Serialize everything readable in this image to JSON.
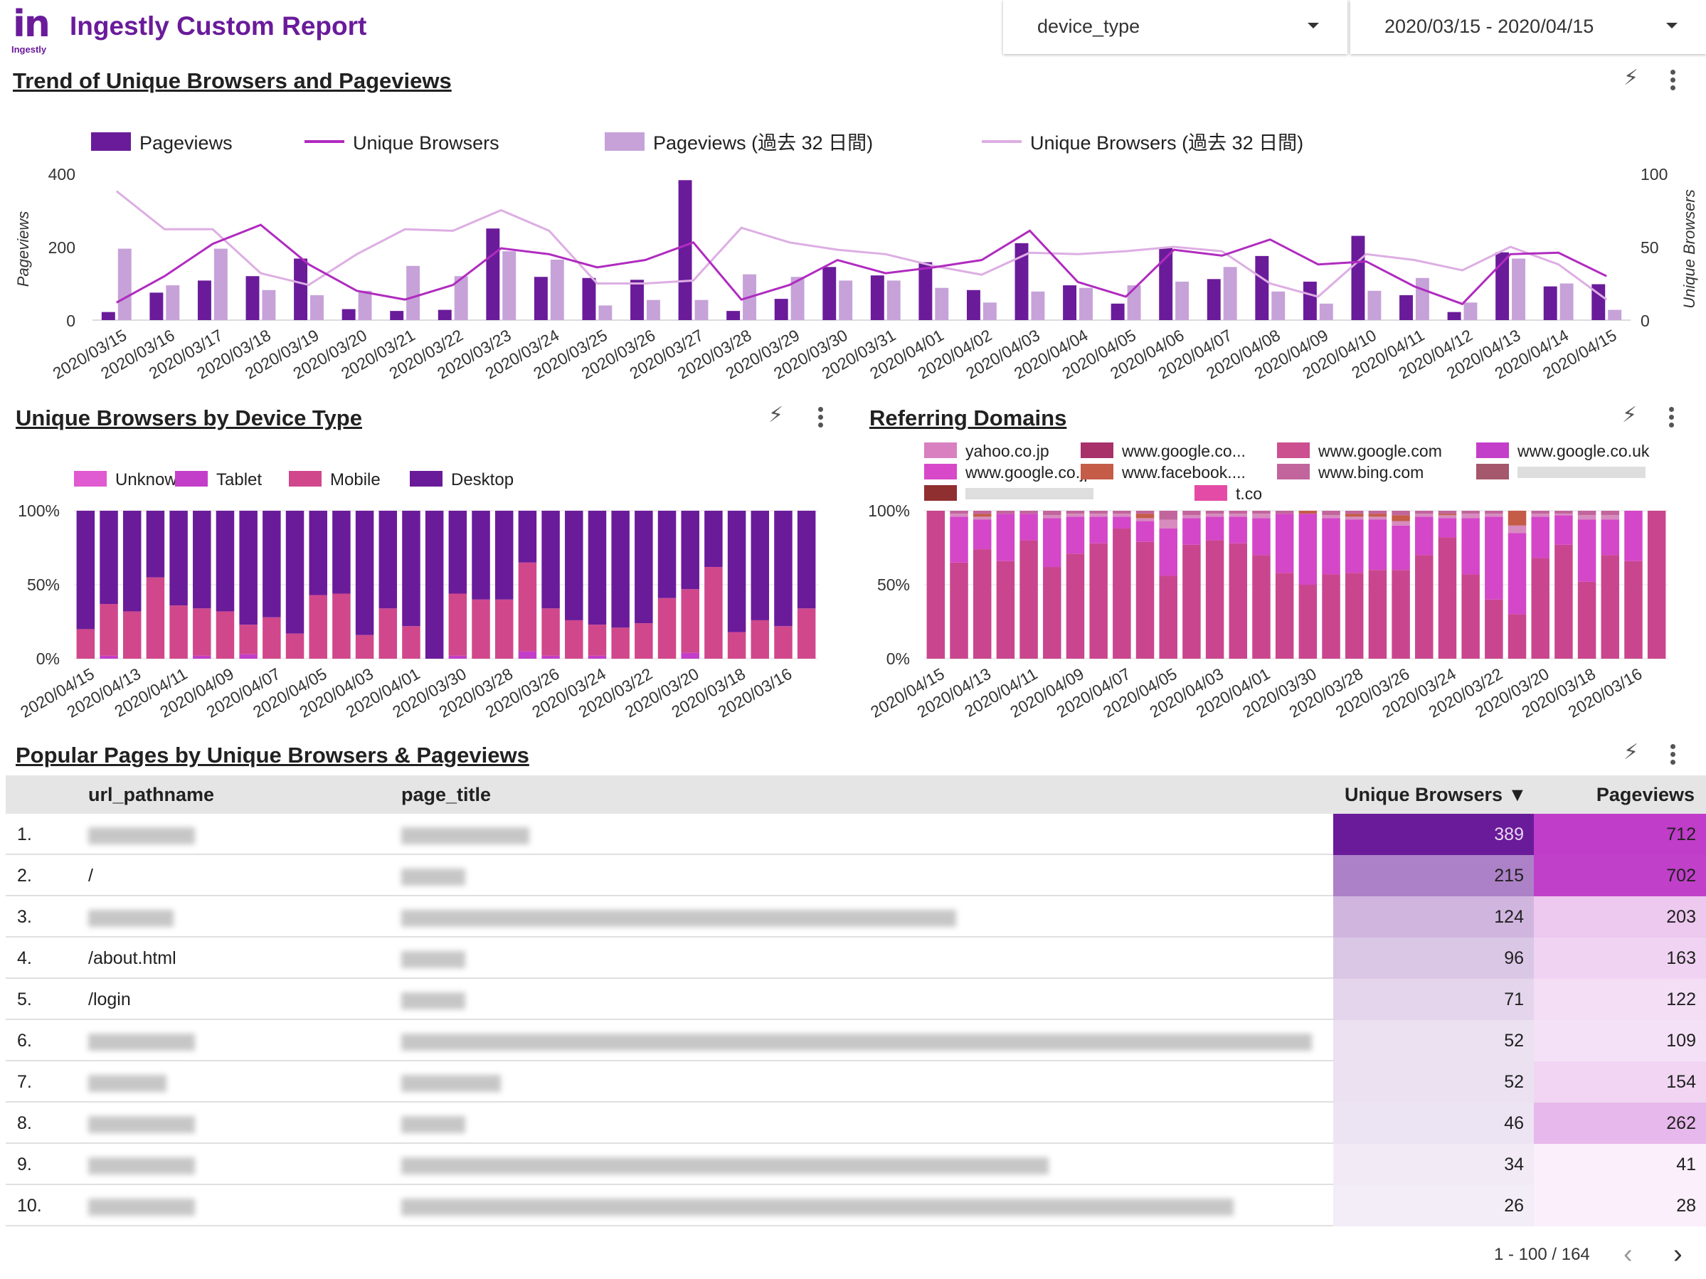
{
  "header": {
    "logo_text": "Ingestly",
    "title": "Ingestly Custom Report",
    "filter_dimension": "device_type",
    "date_range": "2020/03/15 - 2020/04/15",
    "icons": {
      "filter_dropdown": "caret-down-icon",
      "date_dropdown": "caret-down-icon"
    }
  },
  "trend_panel": {
    "title": "Trend of Unique Browsers and Pageviews",
    "icons": [
      "bolt-icon",
      "more-vert-icon"
    ],
    "legend": [
      "Pageviews",
      "Unique Browsers",
      "Pageviews (過去 32 日間)",
      "Unique Browsers (過去 32 日間)"
    ]
  },
  "device_panel": {
    "title": "Unique Browsers by Device Type",
    "icons": [
      "bolt-icon",
      "more-vert-icon"
    ],
    "legend": [
      "Unknown",
      "Tablet",
      "Mobile",
      "Desktop"
    ]
  },
  "domains_panel": {
    "title": "Referring Domains",
    "icons": [
      "bolt-icon",
      "more-vert-icon"
    ],
    "legend": [
      "yahoo.co.jp",
      "www.google.co...",
      "www.google.com",
      "www.google.co.uk",
      "www.google.co.jp",
      "www.facebook....",
      "www.bing.com",
      "",
      "",
      "t.co"
    ]
  },
  "table_panel": {
    "title": "Popular Pages by Unique Browsers & Pageviews",
    "icons": [
      "bolt-icon",
      "more-vert-icon"
    ],
    "columns": [
      "url_pathname",
      "page_title",
      "Unique Browsers ▼",
      "Pageviews"
    ],
    "rows": [
      {
        "num": "1.",
        "path": "",
        "ub": "389",
        "pv": "712"
      },
      {
        "num": "2.",
        "path": "/",
        "ub": "215",
        "pv": "702"
      },
      {
        "num": "3.",
        "path": "",
        "ub": "124",
        "pv": "203"
      },
      {
        "num": "4.",
        "path": "/about.html",
        "ub": "96",
        "pv": "163"
      },
      {
        "num": "5.",
        "path": "/login",
        "ub": "71",
        "pv": "122"
      },
      {
        "num": "6.",
        "path": "",
        "ub": "52",
        "pv": "109"
      },
      {
        "num": "7.",
        "path": "",
        "ub": "52",
        "pv": "154"
      },
      {
        "num": "8.",
        "path": "",
        "ub": "46",
        "pv": "262"
      },
      {
        "num": "9.",
        "path": "",
        "ub": "34",
        "pv": "41"
      },
      {
        "num": "10.",
        "path": "",
        "ub": "26",
        "pv": "28"
      }
    ],
    "pagination": "1 - 100 / 164",
    "pager_icons": [
      "chevron-left-icon",
      "chevron-right-icon"
    ]
  },
  "colors": {
    "brand": "#6a1b9a",
    "desktop": "#6a1b9a",
    "mobile": "#d1478c",
    "tablet": "#c33fc9",
    "unknown": "#e05ad1",
    "prev_bar": "#c6a2d9",
    "prev_line": "#ddaee3"
  },
  "chart_data": [
    {
      "type": "bar",
      "combo": "bar+line",
      "title": "Trend of Unique Browsers and Pageviews",
      "categories": [
        "2020/03/15",
        "2020/03/16",
        "2020/03/17",
        "2020/03/18",
        "2020/03/19",
        "2020/03/20",
        "2020/03/21",
        "2020/03/22",
        "2020/03/23",
        "2020/03/24",
        "2020/03/25",
        "2020/03/26",
        "2020/03/27",
        "2020/03/28",
        "2020/03/29",
        "2020/03/30",
        "2020/03/31",
        "2020/04/01",
        "2020/04/02",
        "2020/04/03",
        "2020/04/04",
        "2020/04/05",
        "2020/04/06",
        "2020/04/07",
        "2020/04/08",
        "2020/04/09",
        "2020/04/10",
        "2020/04/11",
        "2020/04/12",
        "2020/04/13",
        "2020/04/14",
        "2020/04/15"
      ],
      "series": [
        {
          "name": "Pageviews",
          "kind": "bar",
          "axis": "left",
          "values": [
            22,
            75,
            108,
            120,
            168,
            30,
            25,
            28,
            250,
            118,
            115,
            110,
            382,
            25,
            58,
            145,
            122,
            158,
            82,
            210,
            95,
            45,
            198,
            112,
            175,
            105,
            230,
            68,
            22,
            185,
            92,
            98
          ]
        },
        {
          "name": "Unique Browsers",
          "kind": "line",
          "axis": "right",
          "values": [
            12,
            30,
            52,
            65,
            38,
            20,
            14,
            24,
            49,
            45,
            36,
            41,
            53,
            14,
            24,
            41,
            32,
            36,
            41,
            61,
            26,
            16,
            48,
            44,
            55,
            38,
            40,
            23,
            11,
            45,
            46,
            30
          ]
        },
        {
          "name": "Pageviews (過去 32 日間)",
          "kind": "bar",
          "axis": "left",
          "values": [
            195,
            95,
            195,
            82,
            68,
            80,
            148,
            120,
            188,
            165,
            40,
            55,
            55,
            125,
            118,
            108,
            108,
            88,
            48,
            78,
            88,
            95,
            105,
            145,
            78,
            45,
            80,
            115,
            48,
            168,
            100,
            28
          ]
        },
        {
          "name": "Unique Browsers (過去 32 日間)",
          "kind": "line",
          "axis": "right",
          "values": [
            88,
            62,
            62,
            32,
            24,
            45,
            62,
            61,
            75,
            61,
            25,
            25,
            27,
            63,
            53,
            48,
            45,
            37,
            31,
            46,
            45,
            47,
            50,
            47,
            25,
            16,
            45,
            41,
            34,
            50,
            38,
            14
          ]
        }
      ],
      "ylabel": "Pageviews",
      "y2label": "Unique Browsers",
      "ylim": [
        0,
        400
      ],
      "y2lim": [
        0,
        100
      ],
      "yticks": [
        0,
        200,
        400
      ],
      "y2ticks": [
        0,
        50,
        100
      ],
      "legend": "top-left",
      "grid": false
    },
    {
      "type": "bar",
      "stacked": "percent",
      "title": "Unique Browsers by Device Type",
      "categories": [
        "2020/04/15",
        "2020/04/14",
        "2020/04/13",
        "2020/04/12",
        "2020/04/11",
        "2020/04/10",
        "2020/04/09",
        "2020/04/08",
        "2020/04/07",
        "2020/04/06",
        "2020/04/05",
        "2020/04/04",
        "2020/04/03",
        "2020/04/02",
        "2020/04/01",
        "2020/03/31",
        "2020/03/30",
        "2020/03/29",
        "2020/03/28",
        "2020/03/27",
        "2020/03/26",
        "2020/03/25",
        "2020/03/24",
        "2020/03/23",
        "2020/03/22",
        "2020/03/21",
        "2020/03/20",
        "2020/03/19",
        "2020/03/18",
        "2020/03/17",
        "2020/03/16",
        "2020/03/15"
      ],
      "tick_labels": [
        "2020/04/15",
        "2020/04/13",
        "2020/04/11",
        "2020/04/09",
        "2020/04/07",
        "2020/04/05",
        "2020/04/03",
        "2020/04/01",
        "2020/03/30",
        "2020/03/28",
        "2020/03/26",
        "2020/03/24",
        "2020/03/22",
        "2020/03/20",
        "2020/03/18",
        "2020/03/16"
      ],
      "series": [
        {
          "name": "Unknown",
          "values": [
            0,
            0,
            0,
            0,
            0,
            0,
            0,
            0,
            0,
            0,
            0,
            0,
            0,
            0,
            0,
            0,
            0,
            0,
            0,
            0,
            0,
            0,
            0,
            0,
            0,
            0,
            0,
            0,
            0,
            0,
            0,
            0
          ]
        },
        {
          "name": "Tablet",
          "values": [
            0,
            2,
            0,
            0,
            0,
            2,
            0,
            3,
            0,
            0,
            0,
            0,
            0,
            0,
            0,
            0,
            2,
            0,
            0,
            5,
            2,
            0,
            2,
            0,
            0,
            0,
            4,
            0,
            0,
            0,
            0,
            0
          ]
        },
        {
          "name": "Mobile",
          "values": [
            20,
            35,
            32,
            55,
            36,
            32,
            32,
            20,
            28,
            17,
            43,
            44,
            16,
            34,
            22,
            0,
            42,
            40,
            40,
            60,
            32,
            26,
            21,
            21,
            24,
            41,
            43,
            62,
            18,
            26,
            22,
            34
          ]
        },
        {
          "name": "Desktop",
          "values": [
            80,
            63,
            68,
            45,
            64,
            66,
            68,
            77,
            72,
            83,
            57,
            56,
            84,
            66,
            78,
            100,
            56,
            60,
            60,
            35,
            66,
            74,
            77,
            79,
            76,
            59,
            53,
            38,
            82,
            74,
            78,
            66
          ]
        }
      ],
      "ylim": [
        0,
        100
      ],
      "yticks": [
        "0%",
        "50%",
        "100%"
      ],
      "legend": "top-left",
      "grid": true
    },
    {
      "type": "bar",
      "stacked": "percent",
      "title": "Referring Domains",
      "categories": [
        "2020/04/15",
        "2020/04/14",
        "2020/04/13",
        "2020/04/12",
        "2020/04/11",
        "2020/04/10",
        "2020/04/09",
        "2020/04/08",
        "2020/04/07",
        "2020/04/06",
        "2020/04/05",
        "2020/04/04",
        "2020/04/03",
        "2020/04/02",
        "2020/04/01",
        "2020/03/31",
        "2020/03/30",
        "2020/03/29",
        "2020/03/28",
        "2020/03/27",
        "2020/03/26",
        "2020/03/25",
        "2020/03/24",
        "2020/03/23",
        "2020/03/22",
        "2020/03/21",
        "2020/03/20",
        "2020/03/19",
        "2020/03/18",
        "2020/03/17",
        "2020/03/16",
        "2020/03/15"
      ],
      "tick_labels": [
        "2020/04/15",
        "2020/04/13",
        "2020/04/11",
        "2020/04/09",
        "2020/04/07",
        "2020/04/05",
        "2020/04/03",
        "2020/04/01",
        "2020/03/30",
        "2020/03/28",
        "2020/03/26",
        "2020/03/24",
        "2020/03/22",
        "2020/03/20",
        "2020/03/18",
        "2020/03/16"
      ],
      "series": [
        {
          "name": "www.google.com",
          "values": [
            100,
            65,
            74,
            66,
            80,
            62,
            71,
            78,
            88,
            79,
            56,
            77,
            80,
            78,
            70,
            58,
            50,
            57,
            58,
            60,
            60,
            70,
            82,
            57,
            40,
            30,
            68,
            77,
            52,
            70,
            66,
            100
          ]
        },
        {
          "name": "www.google.co.jp",
          "values": [
            0,
            31,
            20,
            32,
            18,
            33,
            25,
            18,
            8,
            14,
            32,
            18,
            16,
            18,
            25,
            40,
            48,
            38,
            36,
            34,
            30,
            26,
            13,
            38,
            56,
            55,
            28,
            20,
            42,
            24,
            34,
            0
          ]
        },
        {
          "name": "yahoo.co.jp",
          "values": [
            0,
            2,
            2,
            0,
            0,
            2,
            2,
            2,
            2,
            2,
            6,
            2,
            2,
            2,
            3,
            0,
            0,
            2,
            2,
            2,
            3,
            2,
            2,
            3,
            2,
            5,
            2,
            1,
            3,
            3,
            0,
            0
          ]
        },
        {
          "name": "www.facebook....",
          "values": [
            0,
            0,
            2,
            0,
            0,
            0,
            0,
            0,
            0,
            3,
            0,
            0,
            0,
            0,
            0,
            0,
            2,
            0,
            2,
            2,
            4,
            0,
            1,
            0,
            0,
            10,
            0,
            0,
            0,
            0,
            0,
            0
          ]
        },
        {
          "name": "www.bing.com",
          "values": [
            0,
            2,
            2,
            2,
            2,
            3,
            2,
            2,
            2,
            2,
            6,
            3,
            2,
            2,
            2,
            2,
            0,
            3,
            2,
            2,
            3,
            2,
            2,
            2,
            2,
            0,
            2,
            2,
            3,
            3,
            0,
            0
          ]
        }
      ],
      "ylim": [
        0,
        100
      ],
      "yticks": [
        "0%",
        "50%",
        "100%"
      ],
      "legend": "top",
      "grid": true
    }
  ]
}
